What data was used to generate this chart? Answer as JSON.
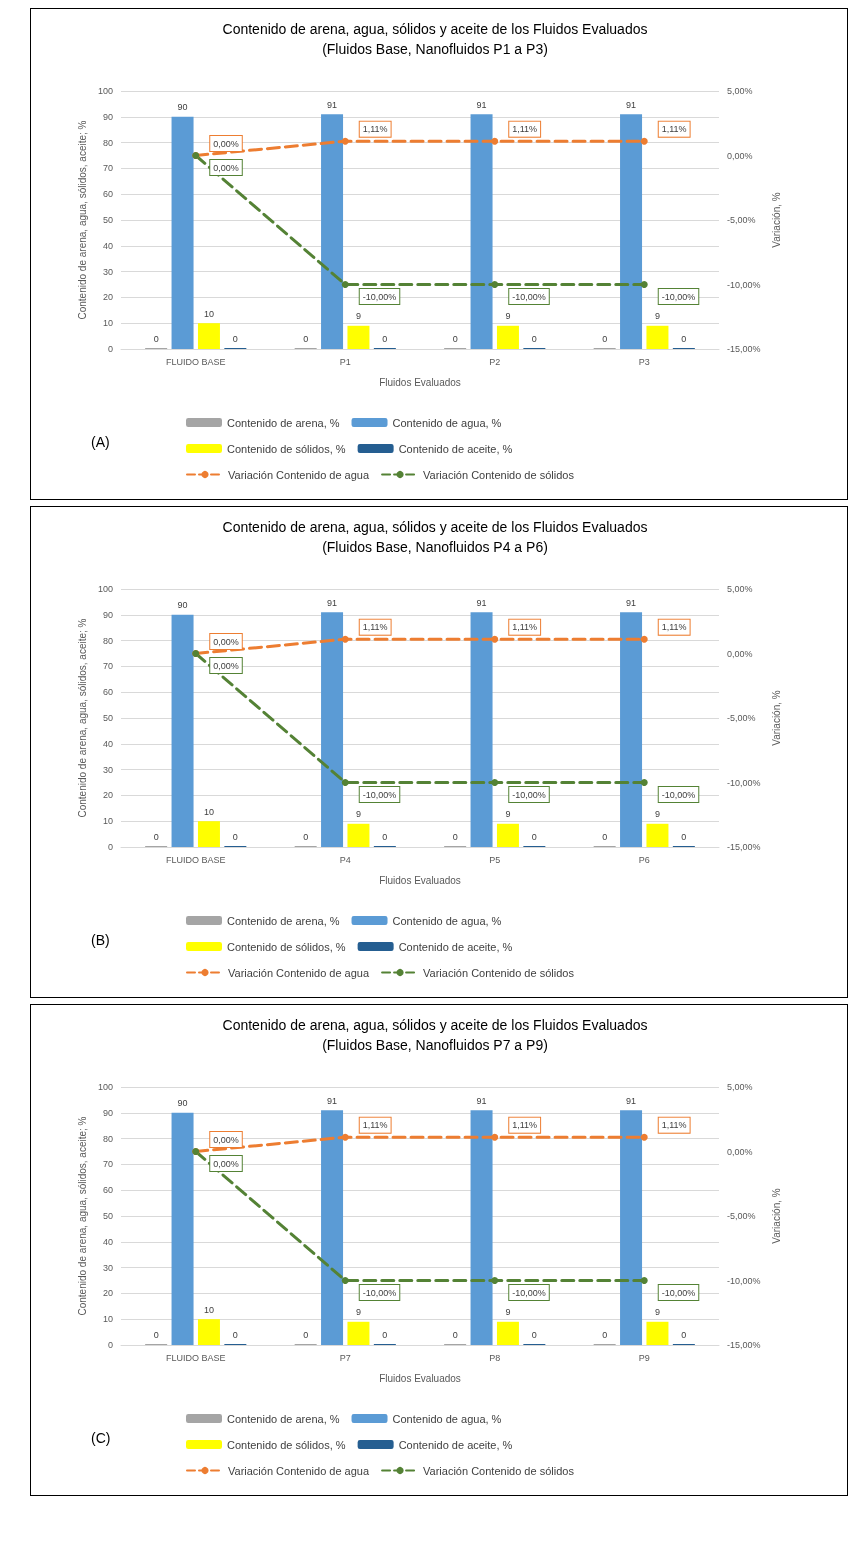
{
  "chart_data": [
    {
      "type": "bar",
      "title": "Contenido de arena, agua, sólidos y aceite de los Fluidos Evaluados",
      "subtitle": "(Fluidos Base, Nanofluidos P1 a P3)",
      "xlabel": "Fluidos Evaluados",
      "ylabel": "Contenido de arena, agua, sólidos, aceite; %",
      "y2label": "Variación, %",
      "categories": [
        "FLUIDO BASE",
        "P1",
        "P2",
        "P3"
      ],
      "series": [
        {
          "name": "Contenido de arena, %",
          "color": "#a5a5a5",
          "values": [
            0,
            0,
            0,
            0
          ],
          "value_labels": [
            "0",
            "0",
            "0",
            "0"
          ]
        },
        {
          "name": "Contenido de agua, %",
          "color": "#5b9bd5",
          "values": [
            90,
            91,
            91,
            91
          ],
          "value_labels": [
            "90",
            "91",
            "91",
            "91"
          ]
        },
        {
          "name": "Contenido de sólidos, %",
          "color": "#ffff00",
          "values": [
            10,
            9,
            9,
            9
          ],
          "value_labels": [
            "10",
            "9",
            "9",
            "9"
          ]
        },
        {
          "name": "Contenido de aceite, %",
          "color": "#255e91",
          "values": [
            0,
            0,
            0,
            0
          ],
          "value_labels": [
            "0",
            "0",
            "0",
            "0"
          ]
        },
        {
          "name": "Variación Contenido de agua",
          "type": "line",
          "axis": "y2",
          "color": "#ed7d31",
          "values": [
            0,
            1.11,
            1.11,
            1.11
          ],
          "value_labels": [
            "0,00%",
            "1,11%",
            "1,11%",
            "1,11%"
          ]
        },
        {
          "name": "Variación Contenido de sólidos",
          "type": "line",
          "axis": "y2",
          "color": "#548235",
          "values": [
            0,
            -10,
            -10,
            -10
          ],
          "value_labels": [
            "0,00%",
            "-10,00%",
            "-10,00%",
            "-10,00%"
          ]
        }
      ],
      "ylim": [
        0,
        100
      ],
      "yticks": [
        0,
        10,
        20,
        30,
        40,
        50,
        60,
        70,
        80,
        90,
        100
      ],
      "y2lim": [
        -15,
        5
      ],
      "y2ticks": [
        {
          "value": -15,
          "label": "-15,00%"
        },
        {
          "value": -10,
          "label": "-10,00%"
        },
        {
          "value": -5,
          "label": "-5,00%"
        },
        {
          "value": 0,
          "label": "0,00%"
        },
        {
          "value": 5,
          "label": "5,00%"
        }
      ],
      "grid": "y",
      "legend": "bottom",
      "marker": "circle",
      "line_style": "dashed",
      "annotations": [
        "(A)"
      ]
    },
    {
      "type": "bar",
      "title": "Contenido de arena, agua, sólidos y aceite de los Fluidos Evaluados",
      "subtitle": "(Fluidos Base, Nanofluidos P4 a P6)",
      "xlabel": "Fluidos Evaluados",
      "ylabel": "Contenido de arena, agua, sólidos, aceite; %",
      "y2label": "Variación, %",
      "categories": [
        "FLUIDO BASE",
        "P4",
        "P5",
        "P6"
      ],
      "series": [
        {
          "name": "Contenido de arena, %",
          "color": "#a5a5a5",
          "values": [
            0,
            0,
            0,
            0
          ],
          "value_labels": [
            "0",
            "0",
            "0",
            "0"
          ]
        },
        {
          "name": "Contenido de agua, %",
          "color": "#5b9bd5",
          "values": [
            90,
            91,
            91,
            91
          ],
          "value_labels": [
            "90",
            "91",
            "91",
            "91"
          ]
        },
        {
          "name": "Contenido de sólidos, %",
          "color": "#ffff00",
          "values": [
            10,
            9,
            9,
            9
          ],
          "value_labels": [
            "10",
            "9",
            "9",
            "9"
          ]
        },
        {
          "name": "Contenido de aceite, %",
          "color": "#255e91",
          "values": [
            0,
            0,
            0,
            0
          ],
          "value_labels": [
            "0",
            "0",
            "0",
            "0"
          ]
        },
        {
          "name": "Variación Contenido de agua",
          "type": "line",
          "axis": "y2",
          "color": "#ed7d31",
          "values": [
            0,
            1.11,
            1.11,
            1.11
          ],
          "value_labels": [
            "0,00%",
            "1,11%",
            "1,11%",
            "1,11%"
          ]
        },
        {
          "name": "Variación Contenido de sólidos",
          "type": "line",
          "axis": "y2",
          "color": "#548235",
          "values": [
            0,
            -10,
            -10,
            -10
          ],
          "value_labels": [
            "0,00%",
            "-10,00%",
            "-10,00%",
            "-10,00%"
          ]
        }
      ],
      "ylim": [
        0,
        100
      ],
      "yticks": [
        0,
        10,
        20,
        30,
        40,
        50,
        60,
        70,
        80,
        90,
        100
      ],
      "y2lim": [
        -15,
        5
      ],
      "y2ticks": [
        {
          "value": -15,
          "label": "-15,00%"
        },
        {
          "value": -10,
          "label": "-10,00%"
        },
        {
          "value": -5,
          "label": "-5,00%"
        },
        {
          "value": 0,
          "label": "0,00%"
        },
        {
          "value": 5,
          "label": "5,00%"
        }
      ],
      "grid": "y",
      "legend": "bottom",
      "marker": "circle",
      "line_style": "dashed",
      "annotations": [
        "(B)"
      ]
    },
    {
      "type": "bar",
      "title": "Contenido de arena, agua, sólidos y aceite de los Fluidos Evaluados",
      "subtitle": "(Fluidos Base, Nanofluidos P7 a P9)",
      "xlabel": "Fluidos Evaluados",
      "ylabel": "Contenido de arena, agua, sólidos, aceite; %",
      "y2label": "Variación, %",
      "categories": [
        "FLUIDO BASE",
        "P7",
        "P8",
        "P9"
      ],
      "series": [
        {
          "name": "Contenido de arena, %",
          "color": "#a5a5a5",
          "values": [
            0,
            0,
            0,
            0
          ],
          "value_labels": [
            "0",
            "0",
            "0",
            "0"
          ]
        },
        {
          "name": "Contenido de agua, %",
          "color": "#5b9bd5",
          "values": [
            90,
            91,
            91,
            91
          ],
          "value_labels": [
            "90",
            "91",
            "91",
            "91"
          ]
        },
        {
          "name": "Contenido de sólidos, %",
          "color": "#ffff00",
          "values": [
            10,
            9,
            9,
            9
          ],
          "value_labels": [
            "10",
            "9",
            "9",
            "9"
          ]
        },
        {
          "name": "Contenido de aceite, %",
          "color": "#255e91",
          "values": [
            0,
            0,
            0,
            0
          ],
          "value_labels": [
            "0",
            "0",
            "0",
            "0"
          ]
        },
        {
          "name": "Variación Contenido de agua",
          "type": "line",
          "axis": "y2",
          "color": "#ed7d31",
          "values": [
            0,
            1.11,
            1.11,
            1.11
          ],
          "value_labels": [
            "0,00%",
            "1,11%",
            "1,11%",
            "1,11%"
          ]
        },
        {
          "name": "Variación Contenido de sólidos",
          "type": "line",
          "axis": "y2",
          "color": "#548235",
          "values": [
            0,
            -10,
            -10,
            -10
          ],
          "value_labels": [
            "0,00%",
            "-10,00%",
            "-10,00%",
            "-10,00%"
          ]
        }
      ],
      "ylim": [
        0,
        100
      ],
      "yticks": [
        0,
        10,
        20,
        30,
        40,
        50,
        60,
        70,
        80,
        90,
        100
      ],
      "y2lim": [
        -15,
        5
      ],
      "y2ticks": [
        {
          "value": -15,
          "label": "-15,00%"
        },
        {
          "value": -10,
          "label": "-10,00%"
        },
        {
          "value": -5,
          "label": "-5,00%"
        },
        {
          "value": 0,
          "label": "0,00%"
        },
        {
          "value": 5,
          "label": "5,00%"
        }
      ],
      "grid": "y",
      "legend": "bottom",
      "marker": "circle",
      "line_style": "dashed",
      "annotations": [
        "(C)"
      ]
    }
  ]
}
